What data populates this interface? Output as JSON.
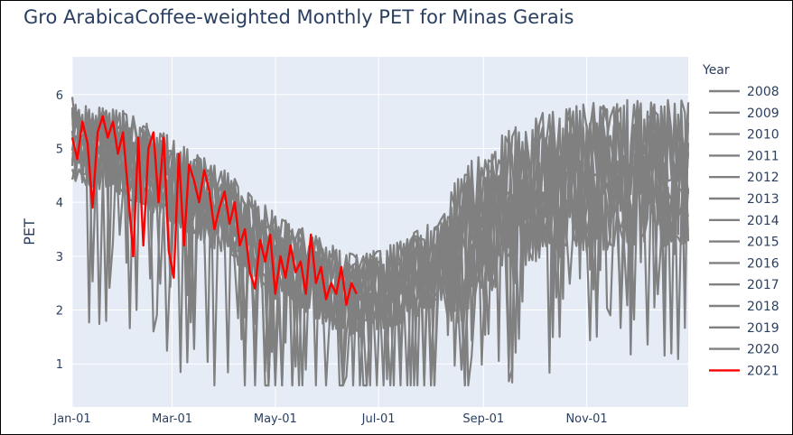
{
  "chart_data": {
    "type": "line",
    "title": "Gro ArabicaCoffee-weighted Monthly PET for Minas Gerais",
    "xlabel": "",
    "ylabel": "PET",
    "x_tick_labels": [
      "Jan-01",
      "Mar-01",
      "May-01",
      "Jul-01",
      "Sep-01",
      "Nov-01"
    ],
    "x_tick_days": [
      0,
      59,
      120,
      181,
      243,
      304
    ],
    "x_range_days": [
      0,
      364
    ],
    "y_ticks": [
      1,
      2,
      3,
      4,
      5,
      6
    ],
    "ylim": [
      0.2,
      6.7
    ],
    "grid": true,
    "legend_title": "Year",
    "legend_position": "right",
    "colors": {
      "history": "#808080",
      "highlight": "#ff0000",
      "plot_bg": "#e5ecf6"
    },
    "seasonal_profile_days": [
      0,
      30,
      60,
      90,
      120,
      150,
      170,
      200,
      230,
      260,
      290,
      320,
      364
    ],
    "seasonal_profile_values": [
      5.2,
      4.9,
      4.4,
      3.8,
      3.0,
      2.5,
      2.2,
      2.6,
      3.2,
      4.1,
      4.4,
      4.5,
      4.6
    ],
    "series": [
      {
        "name": "2008",
        "color": "#808080"
      },
      {
        "name": "2009",
        "color": "#808080"
      },
      {
        "name": "2010",
        "color": "#808080"
      },
      {
        "name": "2011",
        "color": "#808080"
      },
      {
        "name": "2012",
        "color": "#808080"
      },
      {
        "name": "2013",
        "color": "#808080"
      },
      {
        "name": "2014",
        "color": "#808080"
      },
      {
        "name": "2015",
        "color": "#808080"
      },
      {
        "name": "2016",
        "color": "#808080"
      },
      {
        "name": "2017",
        "color": "#808080"
      },
      {
        "name": "2018",
        "color": "#808080"
      },
      {
        "name": "2019",
        "color": "#808080"
      },
      {
        "name": "2020",
        "color": "#808080"
      },
      {
        "name": "2021",
        "color": "#ff0000",
        "x_days": [
          0,
          3,
          6,
          9,
          12,
          15,
          18,
          21,
          24,
          27,
          30,
          33,
          36,
          39,
          42,
          45,
          48,
          51,
          54,
          57,
          60,
          63,
          66,
          69,
          72,
          75,
          78,
          81,
          84,
          87,
          90,
          93,
          96,
          99,
          102,
          105,
          108,
          111,
          114,
          117,
          120,
          123,
          126,
          129,
          132,
          135,
          138,
          141,
          144,
          147,
          150,
          153,
          156,
          159,
          162,
          165,
          168
        ],
        "values": [
          5.2,
          4.8,
          5.5,
          5.1,
          3.9,
          5.3,
          5.6,
          5.2,
          5.5,
          4.9,
          5.3,
          4.2,
          3.0,
          5.2,
          3.2,
          5.0,
          5.3,
          4.0,
          5.2,
          3.1,
          2.6,
          4.9,
          3.2,
          4.7,
          4.4,
          4.0,
          4.6,
          4.2,
          3.5,
          3.9,
          4.2,
          3.6,
          4.0,
          3.2,
          3.5,
          2.7,
          2.4,
          3.3,
          2.9,
          3.4,
          2.3,
          3.0,
          2.6,
          3.2,
          2.7,
          2.9,
          2.3,
          3.4,
          2.5,
          2.8,
          2.2,
          2.5,
          2.3,
          2.8,
          2.1,
          2.5,
          2.3
        ]
      }
    ]
  }
}
